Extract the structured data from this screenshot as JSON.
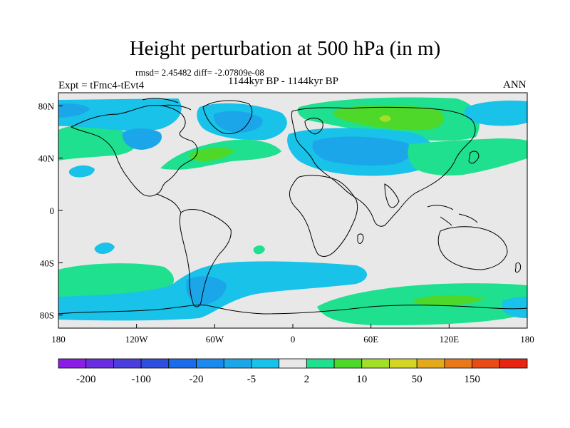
{
  "header": {
    "title": "Height perturbation at 500 hPa (in m)",
    "stats": "rmsd= 2.45482  diff= -2.07809e-08",
    "period": "1144kyr BP - 1144kyr BP",
    "experiment": "Expt = tFmc4-tEvt4",
    "season": "ANN"
  },
  "axes": {
    "x_ticks": [
      "180",
      "120W",
      "60W",
      "0",
      "60E",
      "120E",
      "180"
    ],
    "y_ticks": [
      "80N",
      "40N",
      "0",
      "40S",
      "80S"
    ]
  },
  "colorbar": {
    "colors": [
      "#8a1ee6",
      "#6a2ee0",
      "#4a3ede",
      "#2e4ee0",
      "#1a6cea",
      "#1b8aee",
      "#1ca6ea",
      "#18c2e8",
      "#e8e8e8",
      "#1ee08e",
      "#4ed82a",
      "#a2e028",
      "#d4d422",
      "#e4aa1c",
      "#e87818",
      "#e84c14",
      "#e82412"
    ],
    "labels": [
      "-200",
      "-100",
      "-20",
      "-5",
      "2",
      "10",
      "50",
      "150"
    ]
  },
  "colors": {
    "neutral": "#e8e8e8",
    "light_blue": "#18c2e8",
    "mid_blue": "#1ca6ea",
    "teal_green": "#1ee08e",
    "green": "#4ed82a",
    "yellow_green": "#a2e028",
    "coast": "#000000"
  }
}
